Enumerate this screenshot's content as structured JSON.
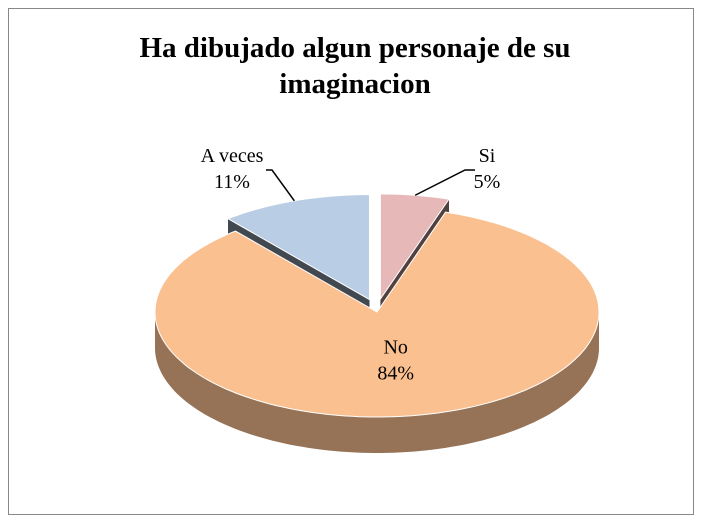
{
  "chart_data": {
    "type": "pie",
    "title": "Ha dibujado algun personaje de su imaginacion",
    "categories": [
      "Si",
      "No",
      "A veces"
    ],
    "values": [
      5,
      84,
      11
    ],
    "value_labels": [
      "5%",
      "84%",
      "11%"
    ],
    "colors": [
      "#e6b9b8",
      "#fac090",
      "#b9cde5"
    ],
    "exploded": [
      true,
      false,
      true
    ]
  }
}
